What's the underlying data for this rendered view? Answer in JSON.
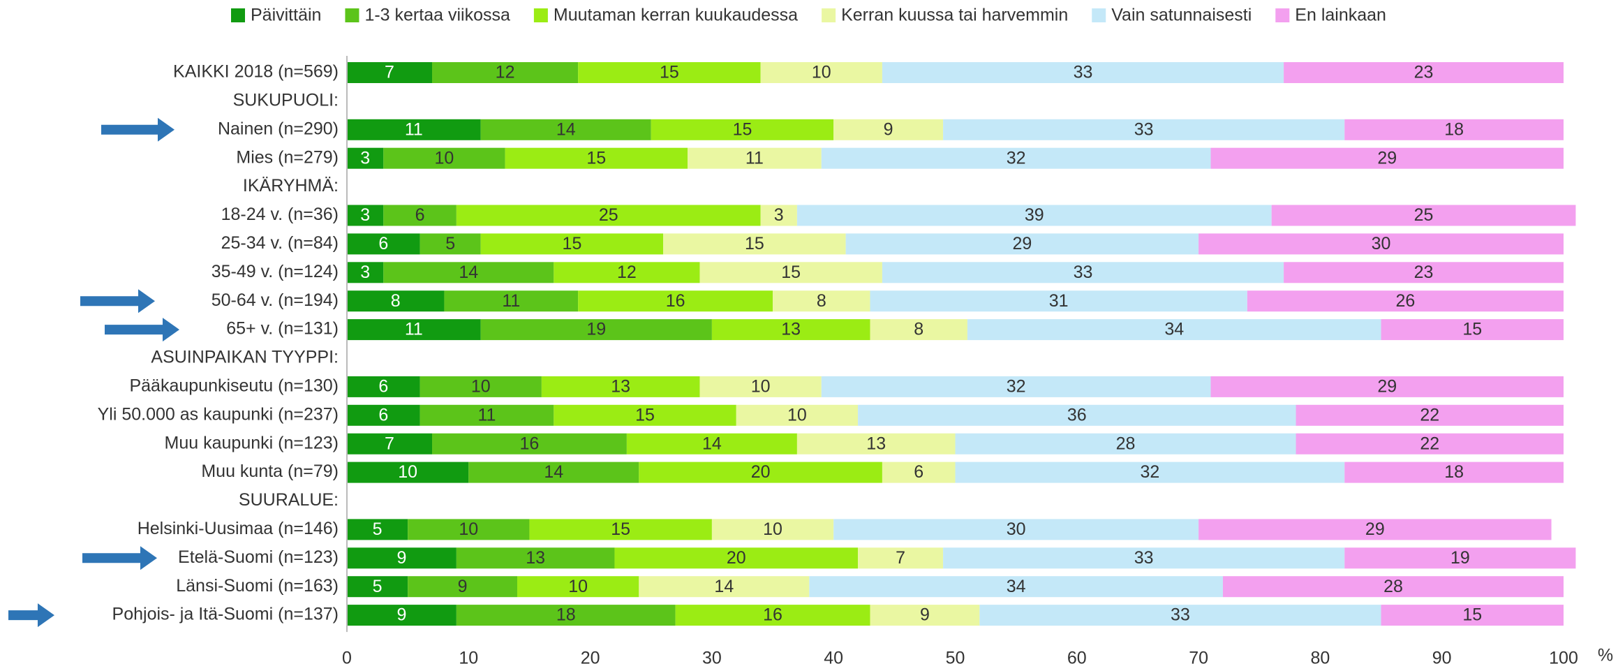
{
  "chart_data": {
    "type": "stacked_barh",
    "xlabel": "%",
    "categories": [
      "KAIKKI 2018 (n=569)",
      "SUKUPUOLI:",
      "Nainen (n=290)",
      "Mies (n=279)",
      "IKÄRYHMÄ:",
      "18-24 v. (n=36)",
      "25-34 v. (n=84)",
      "35-49 v. (n=124)",
      "50-64 v. (n=194)",
      "65+ v. (n=131)",
      "ASUINPAIKAN TYYPPI:",
      "Pääkaupunkiseutu (n=130)",
      "Yli 50.000 as kaupunki (n=237)",
      "Muu kaupunki (n=123)",
      "Muu kunta (n=79)",
      "SUURALUE:",
      "Helsinki-Uusimaa (n=146)",
      "Etelä-Suomi (n=123)",
      "Länsi-Suomi (n=163)",
      "Pohjois- ja Itä-Suomi (n=137)"
    ],
    "series": [
      {
        "name": "Päivittäin",
        "color": "#119b11",
        "values": [
          7,
          null,
          11,
          3,
          null,
          3,
          6,
          3,
          8,
          11,
          null,
          6,
          6,
          7,
          10,
          null,
          5,
          9,
          5,
          9
        ]
      },
      {
        "name": "1-3 kertaa viikossa",
        "color": "#5cc41a",
        "values": [
          12,
          null,
          14,
          10,
          null,
          6,
          5,
          14,
          11,
          19,
          null,
          10,
          11,
          16,
          14,
          null,
          10,
          13,
          9,
          18
        ]
      },
      {
        "name": "Muutaman kerran kuukaudessa",
        "color": "#9bec14",
        "values": [
          15,
          null,
          15,
          15,
          null,
          25,
          15,
          12,
          16,
          13,
          null,
          13,
          15,
          14,
          20,
          null,
          15,
          20,
          10,
          16
        ]
      },
      {
        "name": "Kerran kuussa tai harvemmin",
        "color": "#eaf7a2",
        "values": [
          10,
          null,
          9,
          11,
          null,
          3,
          15,
          15,
          8,
          8,
          null,
          10,
          10,
          13,
          6,
          null,
          10,
          7,
          14,
          9
        ]
      },
      {
        "name": "Vain satunnaisesti",
        "color": "#c4e8f8",
        "values": [
          33,
          null,
          33,
          32,
          null,
          39,
          29,
          33,
          31,
          34,
          null,
          32,
          36,
          28,
          32,
          null,
          30,
          33,
          34,
          33
        ]
      },
      {
        "name": "En lainkaan",
        "color": "#f3a0ef",
        "values": [
          23,
          null,
          18,
          29,
          null,
          25,
          30,
          23,
          26,
          15,
          null,
          29,
          22,
          22,
          18,
          null,
          29,
          19,
          28,
          15
        ]
      }
    ],
    "xlim": [
      0,
      100
    ],
    "xticks": [
      0,
      10,
      20,
      30,
      40,
      50,
      60,
      70,
      80,
      90,
      100
    ],
    "grid": false
  }
}
